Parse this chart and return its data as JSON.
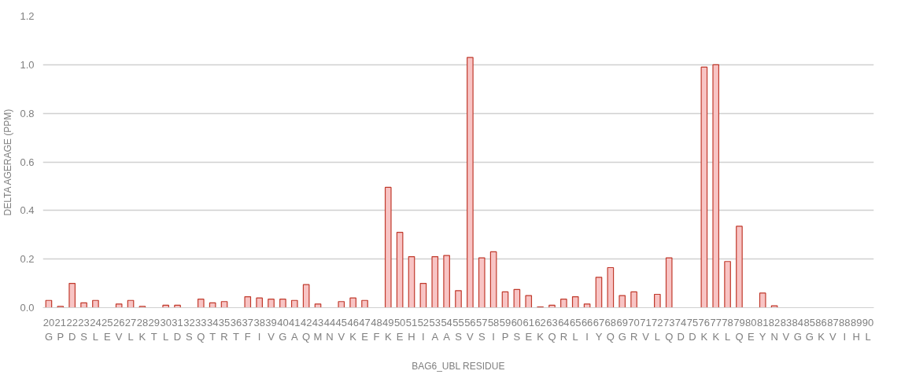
{
  "chart_data": {
    "type": "bar",
    "xlabel": "BAG6_UBL RESIDUE",
    "ylabel": "DELTA AGERAGE (PPM)",
    "categories": [
      "20\nG",
      "21\nP",
      "22\nD",
      "23\nS",
      "24\nL",
      "25\nE",
      "26\nV",
      "27\nL",
      "28\nK",
      "29\nT",
      "30\nL",
      "31\nD",
      "32\nS",
      "33\nQ",
      "34\nT",
      "35\nR",
      "36\nT",
      "37\nF",
      "38\nI",
      "39\nV",
      "40\nG",
      "41\nA",
      "42\nQ",
      "43\nM",
      "44\nN",
      "45\nV",
      "46\nK",
      "47\nE",
      "48\nF",
      "49\nK",
      "50\nE",
      "51\nH",
      "52\nI",
      "53\nA",
      "54\nA",
      "55\nS",
      "56\nV",
      "57\nS",
      "58\nI",
      "59\nP",
      "60\nS",
      "61\nE",
      "62\nK",
      "63\nQ",
      "64\nR",
      "65\nL",
      "66\nI",
      "67\nY",
      "68\nQ",
      "69\nG",
      "70\nR",
      "71\nV",
      "72\nL",
      "73\nQ",
      "74\nD",
      "75\nD",
      "76\nK",
      "77\nK",
      "78\nL",
      "79\nQ",
      "80\nE",
      "81\nY",
      "82\nN",
      "83\nV",
      "84\nG",
      "85\nG",
      "86\nK",
      "87\nV",
      "88\nI",
      "89\nH",
      "90\nL"
    ],
    "values": [
      0.03,
      0.005,
      0.1,
      0.02,
      0.03,
      0,
      0.015,
      0.03,
      0.005,
      0,
      0.01,
      0.01,
      0,
      0.035,
      0.02,
      0.025,
      0,
      0.045,
      0.04,
      0.035,
      0.035,
      0.03,
      0.095,
      0.015,
      0,
      0.025,
      0.04,
      0.03,
      0,
      0.495,
      0.31,
      0.21,
      0.1,
      0.21,
      0.215,
      0.07,
      1.03,
      0.205,
      0.23,
      0.065,
      0.075,
      0.05,
      0.003,
      0.01,
      0.035,
      0.045,
      0.015,
      0.125,
      0.165,
      0.05,
      0.065,
      0,
      0.055,
      0.205,
      0,
      0,
      0.99,
      1.0,
      0.19,
      0.335,
      0,
      0.06,
      0.008,
      0,
      0,
      0,
      0,
      0,
      0,
      0,
      0
    ],
    "color": "#f8c4c4",
    "ylim": [
      0,
      1.2
    ],
    "yticks": [
      {
        "value": 0,
        "label": "0.0"
      },
      {
        "value": 0.2,
        "label": "0.2"
      },
      {
        "value": 0.4,
        "label": "0.4"
      },
      {
        "value": 0.6,
        "label": "0.6"
      },
      {
        "value": 0.8,
        "label": "0.8"
      },
      {
        "value": 1.0,
        "label": "1.0"
      },
      {
        "value": 1.2,
        "label": "1.2"
      }
    ],
    "grid": "y"
  }
}
